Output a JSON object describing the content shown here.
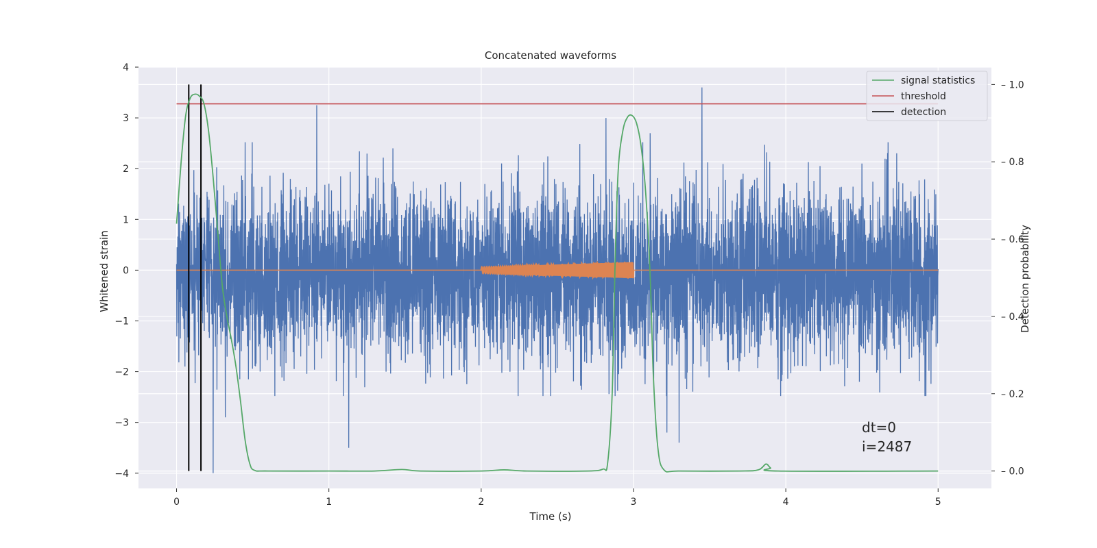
{
  "chart_data": {
    "type": "line",
    "title": "Concatenated waveforms",
    "xlabel": "Time (s)",
    "ylabel": "Whitened strain",
    "y2label": "Detection probability",
    "xlim": [
      -0.25,
      5.35
    ],
    "ylim": [
      -4.3,
      4.0
    ],
    "y2lim": [
      -0.045,
      1.045
    ],
    "xticks": [
      0,
      1,
      2,
      3,
      4,
      5
    ],
    "yticks": [
      -4,
      -3,
      -2,
      -1,
      0,
      1,
      2,
      3,
      4
    ],
    "y2ticks": [
      0.0,
      0.2,
      0.4,
      0.6,
      0.8,
      1.0
    ],
    "grid": true,
    "legend_position": "top-right",
    "colors": {
      "strain": "#4c72b0",
      "template": "#dd8452",
      "signal_statistics": "#55a868",
      "threshold": "#c44e52",
      "detection": "#000000",
      "background": "#eaeaf2",
      "grid": "#ffffff"
    },
    "legend": [
      {
        "key": "signal_statistics",
        "label": "signal statistics"
      },
      {
        "key": "threshold",
        "label": "threshold"
      },
      {
        "key": "detection",
        "label": "detection"
      }
    ],
    "noise": {
      "x_range": [
        0,
        5
      ],
      "typical_band": [
        -1.0,
        0.8
      ],
      "max": 3.6,
      "min": -4.0,
      "spikes": [
        [
          0.08,
          1.7
        ],
        [
          0.16,
          -1.8
        ],
        [
          0.24,
          -4.0
        ],
        [
          0.32,
          -2.9
        ],
        [
          0.92,
          3.25
        ],
        [
          1.13,
          -3.5
        ],
        [
          1.42,
          2.4
        ],
        [
          2.82,
          3.0
        ],
        [
          3.11,
          2.7
        ],
        [
          3.22,
          -3.2
        ],
        [
          3.3,
          -3.4
        ],
        [
          3.45,
          3.6
        ],
        [
          3.72,
          1.9
        ],
        [
          4.5,
          2.1
        ]
      ]
    },
    "template": {
      "x_range": [
        2.0,
        3.0
      ],
      "amplitude_start": 0.06,
      "amplitude_end": 0.16
    },
    "signal_statistics": [
      [
        0.0,
        0.64
      ],
      [
        0.03,
        0.8
      ],
      [
        0.06,
        0.92
      ],
      [
        0.09,
        0.965
      ],
      [
        0.12,
        0.975
      ],
      [
        0.15,
        0.97
      ],
      [
        0.18,
        0.95
      ],
      [
        0.21,
        0.88
      ],
      [
        0.24,
        0.76
      ],
      [
        0.27,
        0.62
      ],
      [
        0.3,
        0.48
      ],
      [
        0.33,
        0.4
      ],
      [
        0.36,
        0.34
      ],
      [
        0.39,
        0.27
      ],
      [
        0.42,
        0.18
      ],
      [
        0.45,
        0.08
      ],
      [
        0.48,
        0.02
      ],
      [
        0.51,
        0.002
      ],
      [
        0.6,
        0.0
      ],
      [
        1.0,
        0.0
      ],
      [
        1.3,
        0.0
      ],
      [
        1.48,
        0.004
      ],
      [
        1.6,
        0.0
      ],
      [
        2.0,
        0.0
      ],
      [
        2.15,
        0.003
      ],
      [
        2.3,
        0.0
      ],
      [
        2.7,
        0.0
      ],
      [
        2.8,
        0.005
      ],
      [
        2.83,
        0.02
      ],
      [
        2.86,
        0.2
      ],
      [
        2.88,
        0.55
      ],
      [
        2.9,
        0.78
      ],
      [
        2.93,
        0.88
      ],
      [
        2.96,
        0.915
      ],
      [
        2.99,
        0.92
      ],
      [
        3.02,
        0.9
      ],
      [
        3.05,
        0.84
      ],
      [
        3.08,
        0.72
      ],
      [
        3.11,
        0.5
      ],
      [
        3.13,
        0.25
      ],
      [
        3.16,
        0.06
      ],
      [
        3.2,
        0.003
      ],
      [
        3.3,
        0.0
      ],
      [
        3.7,
        0.0
      ],
      [
        3.82,
        0.003
      ],
      [
        3.87,
        0.018
      ],
      [
        3.9,
        0.008
      ],
      [
        3.95,
        0.0
      ],
      [
        5.0,
        0.0
      ]
    ],
    "threshold": {
      "y": 0.95,
      "x_range": [
        0,
        5
      ]
    },
    "detections": [
      0.08,
      0.16
    ],
    "detection_line_y_range": [
      0.0,
      1.0
    ],
    "annotation": {
      "lines": [
        "dt=0",
        "i=2487"
      ],
      "x": 4.5,
      "y": -3.0
    }
  }
}
